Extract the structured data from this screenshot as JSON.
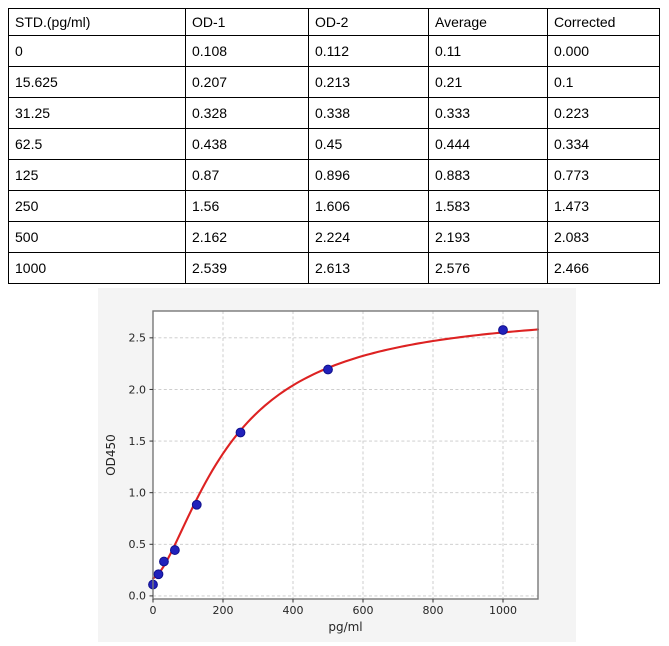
{
  "table": {
    "headers": [
      "STD.(pg/ml)",
      "OD-1",
      "OD-2",
      "Average",
      "Corrected"
    ],
    "rows": [
      [
        "0",
        "0.108",
        "0.112",
        "0.11",
        "0.000"
      ],
      [
        "15.625",
        "0.207",
        "0.213",
        "0.21",
        "0.1"
      ],
      [
        "31.25",
        "0.328",
        "0.338",
        "0.333",
        "0.223"
      ],
      [
        "62.5",
        "0.438",
        "0.45",
        "0.444",
        "0.334"
      ],
      [
        "125",
        "0.87",
        "0.896",
        "0.883",
        "0.773"
      ],
      [
        "250",
        "1.56",
        "1.606",
        "1.583",
        "1.473"
      ],
      [
        "500",
        "2.162",
        "2.224",
        "2.193",
        "2.083"
      ],
      [
        "1000",
        "2.539",
        "2.613",
        "2.576",
        "2.466"
      ]
    ]
  },
  "chart_data": {
    "type": "scatter",
    "title": "",
    "xlabel": "pg/ml",
    "ylabel": "OD450",
    "x": [
      0,
      15.625,
      31.25,
      62.5,
      125,
      250,
      500,
      1000
    ],
    "y": [
      0.11,
      0.21,
      0.333,
      0.444,
      0.883,
      1.583,
      2.193,
      2.576
    ],
    "series": [
      {
        "name": "standard-points",
        "kind": "scatter"
      },
      {
        "name": "4pl-fit-curve",
        "kind": "line"
      }
    ],
    "curve_fit": {
      "model": "4PL",
      "a": 0.17,
      "b": 1.55,
      "c": 220,
      "d": 2.78
    },
    "xlim": [
      0,
      1100
    ],
    "ylim": [
      -0.03,
      2.76
    ],
    "xticks": [
      "0",
      "200",
      "400",
      "600",
      "800",
      "1000"
    ],
    "xtick_values": [
      0,
      200,
      400,
      600,
      800,
      1000
    ],
    "yticks": [
      "0.0",
      "0.5",
      "1.0",
      "1.5",
      "2.0",
      "2.5"
    ],
    "ytick_values": [
      0.0,
      0.5,
      1.0,
      1.5,
      2.0,
      2.5
    ],
    "grid": true,
    "legend": "none",
    "colors": {
      "figure_bg": "#f4f4f4",
      "plot_bg": "#ffffff",
      "grid": "#c8c8c8",
      "spine": "#787878",
      "curve": "#dd2222",
      "marker_fill": "#2121bb",
      "marker_edge": "#10108c",
      "tick_text": "#262626"
    }
  }
}
